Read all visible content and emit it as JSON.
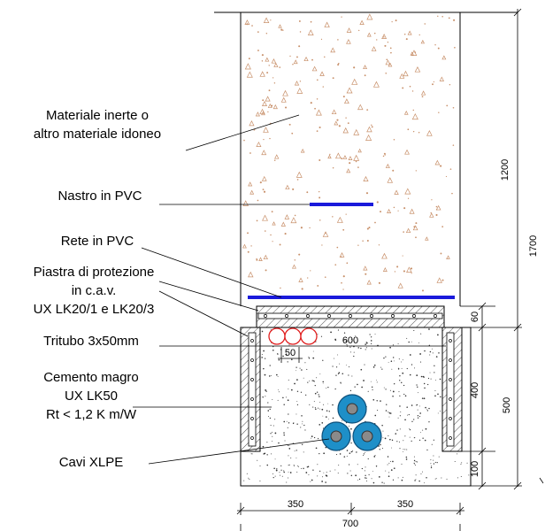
{
  "labels": {
    "inert_line1": "Materiale inerte o",
    "inert_line2": "altro materiale idoneo",
    "tape": "Nastro in PVC",
    "net": "Rete in PVC",
    "plate_line1": "Piastra di protezione",
    "plate_line2": "in c.a.v.",
    "plate_line3": "UX LK20/1 e LK20/3",
    "tritube": "Tritubo 3x50mm",
    "concrete_line1": "Cemento magro",
    "concrete_line2": "UX LK50",
    "concrete_line3": "Rt < 1,2 K m/W",
    "cables": "Cavi XLPE"
  },
  "dimensions": {
    "d1200": "1200",
    "d1700": "1700",
    "d60": "60",
    "d400": "400",
    "d500": "500",
    "d100": "100",
    "d600": "600",
    "d50": "50",
    "d350_left": "350",
    "d350_right": "350",
    "d700": "700"
  },
  "colors": {
    "pvc_blue": "#1a1adb",
    "cable_blue": "#1e8fc8",
    "cable_core": "#8a8a8a",
    "tube_red": "#e02020",
    "aggregate": "#c8906a"
  }
}
